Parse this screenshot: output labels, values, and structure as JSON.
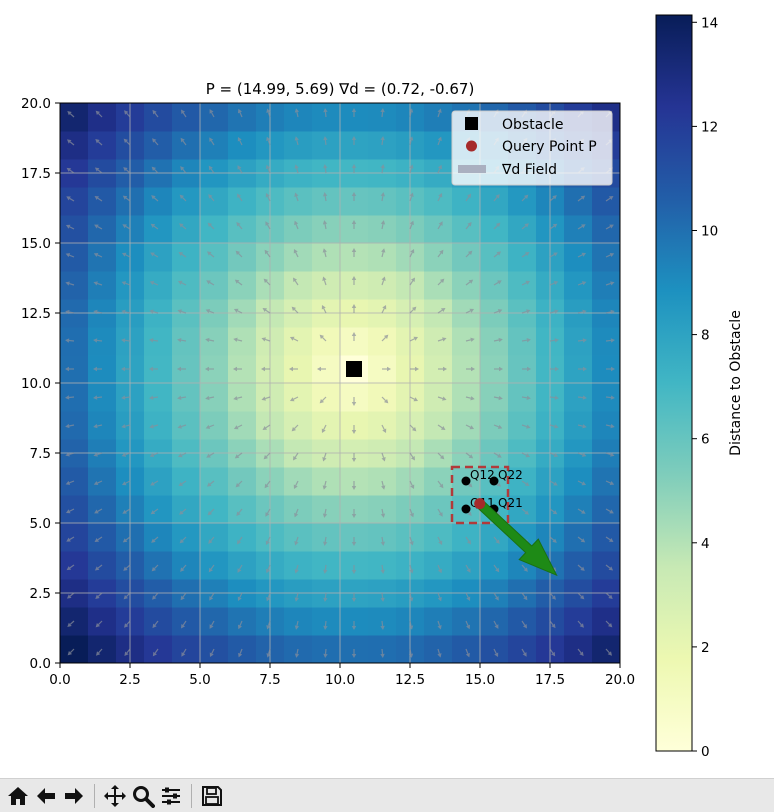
{
  "chart_data": {
    "type": "heatmap",
    "title": "P = (14.99, 5.69)   ∇d = (0.72, -0.67)",
    "xlim": [
      0,
      20
    ],
    "ylim": [
      0,
      20
    ],
    "x_ticks": [
      "0.0",
      "2.5",
      "5.0",
      "7.5",
      "10.0",
      "12.5",
      "15.0",
      "17.5",
      "20.0"
    ],
    "y_ticks": [
      "0.0",
      "2.5",
      "5.0",
      "7.5",
      "10.0",
      "12.5",
      "15.0",
      "17.5",
      "20.0"
    ],
    "x_tick_values": [
      0,
      2.5,
      5,
      7.5,
      10,
      12.5,
      15,
      17.5,
      20
    ],
    "y_tick_values": [
      0,
      2.5,
      5,
      7.5,
      10,
      12.5,
      15,
      17.5,
      20
    ],
    "grid": true,
    "colormap": "YlGnBu",
    "grid_cells": 20,
    "obstacle": [
      10.5,
      10.5
    ],
    "query_point": [
      14.99,
      5.69
    ],
    "gradient": [
      0.72,
      -0.67
    ],
    "interp_cell": {
      "x0": 14,
      "x1": 16,
      "y0": 5,
      "y1": 7
    },
    "corners": [
      {
        "label": "Q12",
        "x": 14.5,
        "y": 6.5
      },
      {
        "label": "Q22",
        "x": 15.5,
        "y": 6.5
      },
      {
        "label": "Q11",
        "x": 14.5,
        "y": 5.5
      },
      {
        "label": "Q21",
        "x": 15.5,
        "y": 5.5
      }
    ],
    "legend": {
      "position": "upper right",
      "entries": [
        {
          "label": "Obstacle",
          "marker": "square",
          "color": "#000000"
        },
        {
          "label": "Query Point P",
          "marker": "circle",
          "color": "#a52a2a"
        },
        {
          "label": "∇d Field",
          "marker": "bar",
          "color": "#aab0c0"
        }
      ]
    },
    "colorbar": {
      "label": "Distance to Obstacle",
      "min": 0,
      "max": 14.14,
      "ticks": [
        "0",
        "2",
        "4",
        "6",
        "8",
        "10",
        "12",
        "14"
      ],
      "tick_values": [
        0,
        2,
        4,
        6,
        8,
        10,
        12,
        14
      ]
    }
  },
  "toolbar": {
    "buttons": [
      "home-icon",
      "back-icon",
      "forward-icon",
      "pan-icon",
      "zoom-icon",
      "configure-icon",
      "save-icon"
    ]
  }
}
